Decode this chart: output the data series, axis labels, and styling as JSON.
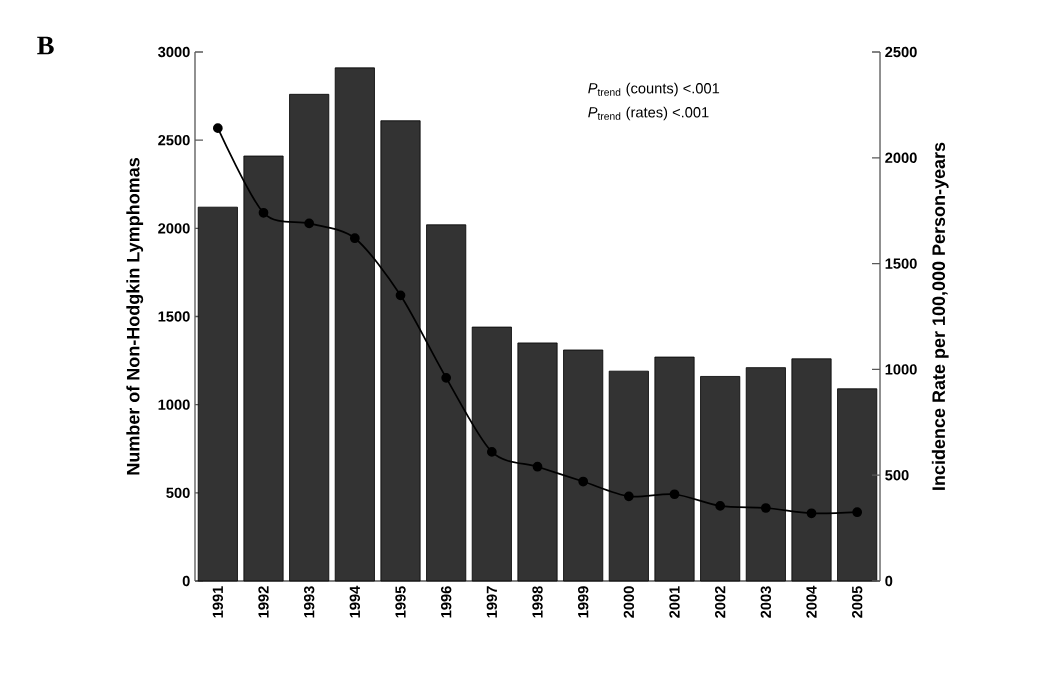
{
  "chart_data": {
    "type": "bar",
    "title": "B",
    "ylabel": "Number of Non-Hodgkin Lymphomas",
    "y2label": "Incidence Rate per 100,000 Person-years",
    "categories": [
      "1991",
      "1992",
      "1993",
      "1994",
      "1995",
      "1996",
      "1997",
      "1998",
      "1999",
      "2000",
      "2001",
      "2002",
      "2003",
      "2004",
      "2005"
    ],
    "series": [
      {
        "color": "#333333",
        "values": [
          2120,
          2410,
          2760,
          2910,
          2610,
          2020,
          1440,
          1350,
          1310,
          1190,
          1270,
          1160,
          1210,
          1260,
          1090
        ]
      },
      {
        "type": "line",
        "axis": "y2",
        "color": "#000000",
        "values": [
          2140,
          1740,
          1690,
          1620,
          1350,
          960,
          610,
          540,
          470,
          400,
          410,
          355,
          345,
          320,
          325
        ]
      }
    ],
    "ylim": [
      0,
      3000
    ],
    "yticks": [
      0,
      500,
      1000,
      1500,
      2000,
      2500,
      3000
    ],
    "y2lim": [
      0,
      2500
    ],
    "y2ticks": [
      0,
      500,
      1000,
      1500,
      2000,
      2500
    ],
    "marker": "circle",
    "annotations": [
      "*P*$_{trend}$ (counts) <.001",
      "*P*$_{trend}$ (rates) <.001"
    ]
  }
}
